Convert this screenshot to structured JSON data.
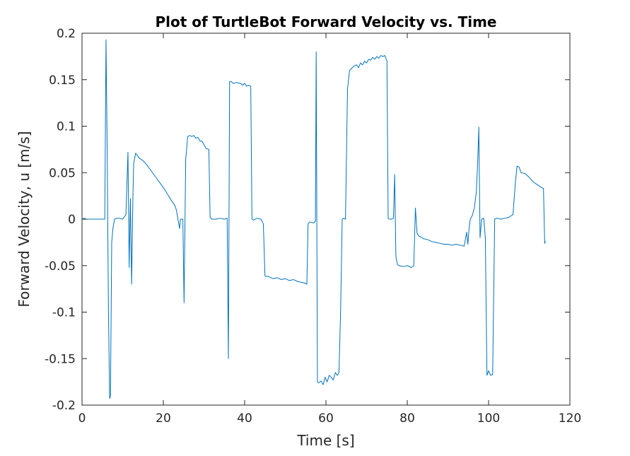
{
  "chart_data": {
    "type": "line",
    "title": "Plot of TurtleBot Forward Velocity vs. Time",
    "xlabel": "Time [s]",
    "ylabel": "Forward Velocity, u [m/s]",
    "xlim": [
      0,
      120
    ],
    "ylim": [
      -0.2,
      0.2
    ],
    "xticks": [
      0,
      20,
      40,
      60,
      80,
      100,
      120
    ],
    "yticks": [
      -0.2,
      -0.15,
      -0.1,
      -0.05,
      0,
      0.05,
      0.1,
      0.15,
      0.2
    ],
    "xtick_labels": [
      "0",
      "20",
      "40",
      "60",
      "80",
      "100",
      "120"
    ],
    "ytick_labels": [
      "-0.2",
      "-0.15",
      "-0.1",
      "-0.05",
      "0",
      "0.05",
      "0.1",
      "0.15",
      "0.2"
    ],
    "grid": false,
    "line_color": "#0072BD",
    "series": [
      {
        "x": [
          0,
          0.5,
          1,
          2,
          3,
          4,
          5,
          5.6,
          5.9,
          6.2,
          6.5,
          6.8,
          7.0,
          7.3,
          7.6,
          8.0,
          8.5,
          9,
          10,
          10.8,
          11.3,
          11.6,
          11.9,
          12.2,
          12.5,
          12.7,
          13.2,
          14,
          15,
          16,
          17,
          18,
          19,
          20,
          21,
          22,
          22.8,
          23.2,
          23.6,
          24.0,
          24.2,
          24.5,
          24.8,
          25.1,
          25.5,
          26,
          26.5,
          27,
          27.5,
          28,
          28.5,
          29,
          29.5,
          30,
          30.5,
          31.2,
          31.5,
          32,
          33,
          34,
          35,
          35.7,
          36.0,
          36.3,
          36.7,
          37.2,
          38,
          39,
          39.5,
          40,
          40.5,
          41,
          41.5,
          41.8,
          42.2,
          42.6,
          43,
          44,
          44.6,
          45,
          46,
          47,
          48,
          49,
          50,
          51,
          52,
          53,
          54,
          55,
          55.3,
          55.6,
          56,
          57,
          57.4,
          57.6,
          57.9,
          58.3,
          58.8,
          59.3,
          59.8,
          60.3,
          60.8,
          61.3,
          61.8,
          62.3,
          62.8,
          63.2,
          63.6,
          64,
          64.3,
          64.8,
          65.3,
          65.8,
          66.5,
          67,
          67.5,
          68,
          68.5,
          69,
          69.5,
          70,
          70.5,
          71,
          71.5,
          72,
          72.5,
          73,
          73.5,
          74,
          74.5,
          75,
          75.3,
          75.6,
          76.2,
          76.6,
          76.9,
          77.2,
          77.6,
          78,
          79,
          80,
          81,
          81.6,
          82,
          82.4,
          82.8,
          83.3,
          84,
          85,
          86,
          87,
          88,
          89,
          90,
          91,
          92,
          93,
          94,
          94.6,
          94.9,
          95.2,
          95.5,
          96,
          96.5,
          97,
          97.3,
          97.6,
          97.9,
          98.3,
          98.8,
          99.2,
          99.6,
          100,
          100.5,
          101,
          101.5,
          102,
          103,
          104,
          105,
          106,
          106.6,
          107,
          107.5,
          108,
          109,
          110,
          111,
          112,
          113,
          113.5,
          113.8,
          114
        ],
        "y": [
          0,
          0.001,
          0,
          0,
          0,
          0,
          0,
          0,
          0.193,
          0.07,
          -0.1,
          -0.193,
          -0.19,
          -0.025,
          -0.01,
          0,
          0.001,
          0.001,
          0,
          0.005,
          0.072,
          -0.052,
          0.022,
          -0.07,
          0.02,
          0.06,
          0.071,
          0.066,
          0.063,
          0.058,
          0.052,
          0.046,
          0.04,
          0.034,
          0.027,
          0.02,
          0.015,
          0.01,
          0,
          -0.01,
          0,
          0,
          0,
          -0.09,
          0.064,
          0.089,
          0.09,
          0.089,
          0.09,
          0.087,
          0.088,
          0.084,
          0.084,
          0.08,
          0.076,
          0.075,
          0.002,
          0.0,
          0.0,
          0.001,
          0.0,
          0.001,
          -0.15,
          0.148,
          0.148,
          0.146,
          0.147,
          0.146,
          0.144,
          0.146,
          0.143,
          0.144,
          0.143,
          0.0,
          -0.001,
          0.0,
          0.001,
          0.0,
          -0.005,
          -0.061,
          -0.062,
          -0.064,
          -0.063,
          -0.065,
          -0.064,
          -0.066,
          -0.065,
          -0.067,
          -0.068,
          -0.069,
          -0.07,
          -0.005,
          -0.003,
          -0.004,
          -0.002,
          0.18,
          -0.175,
          -0.176,
          -0.174,
          -0.178,
          -0.17,
          -0.175,
          -0.168,
          -0.17,
          -0.173,
          -0.165,
          -0.168,
          -0.165,
          -0.1,
          0.0,
          0.001,
          0.0,
          0.14,
          0.16,
          0.163,
          0.165,
          0.166,
          0.163,
          0.168,
          0.166,
          0.17,
          0.168,
          0.172,
          0.171,
          0.174,
          0.172,
          0.175,
          0.173,
          0.176,
          0.175,
          0.176,
          0.17,
          0.001,
          0.0,
          0.0,
          0.001,
          0.048,
          -0.04,
          -0.049,
          -0.05,
          -0.051,
          -0.05,
          -0.052,
          -0.05,
          0.012,
          -0.015,
          -0.018,
          -0.019,
          -0.021,
          -0.022,
          -0.024,
          -0.025,
          -0.026,
          -0.027,
          -0.027,
          -0.028,
          -0.027,
          -0.028,
          -0.029,
          -0.014,
          -0.027,
          -0.01,
          0.0,
          0.004,
          0.012,
          0.03,
          0.06,
          0.099,
          -0.02,
          0.0,
          0.001,
          -0.02,
          -0.168,
          -0.163,
          -0.168,
          -0.167,
          0.0,
          0.001,
          0.0,
          0.001,
          0.002,
          0.005,
          0.04,
          0.057,
          0.056,
          0.05,
          0.049,
          0.045,
          0.04,
          0.037,
          0.034,
          0.033,
          -0.026,
          -0.024
        ]
      }
    ]
  }
}
